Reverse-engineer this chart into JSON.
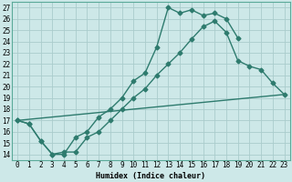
{
  "xlabel": "Humidex (Indice chaleur)",
  "ylabel": "",
  "xlim": [
    -0.5,
    23.5
  ],
  "ylim": [
    13.5,
    27.5
  ],
  "xticks": [
    0,
    1,
    2,
    3,
    4,
    5,
    6,
    7,
    8,
    9,
    10,
    11,
    12,
    13,
    14,
    15,
    16,
    17,
    18,
    19,
    20,
    21,
    22,
    23
  ],
  "yticks": [
    14,
    15,
    16,
    17,
    18,
    19,
    20,
    21,
    22,
    23,
    24,
    25,
    26,
    27
  ],
  "bg_color": "#cde8e8",
  "grid_color": "#aacccc",
  "line_color": "#2e7b6e",
  "line1_x": [
    0,
    1,
    2,
    3,
    4,
    5,
    6,
    7,
    8,
    9,
    10,
    11,
    12,
    13,
    14,
    15,
    16,
    17,
    18,
    19
  ],
  "line1_y": [
    17.0,
    16.7,
    15.2,
    14.0,
    14.0,
    15.5,
    16.0,
    17.3,
    18.0,
    19.0,
    20.5,
    21.2,
    23.5,
    27.0,
    26.5,
    26.8,
    26.3,
    26.5,
    26.0,
    24.3
  ],
  "line2_x": [
    0,
    1,
    2,
    3,
    4,
    5,
    6,
    7,
    8,
    9,
    10,
    11,
    12,
    13,
    14,
    15,
    16,
    17,
    18,
    19,
    20,
    21,
    22,
    23
  ],
  "line2_y": [
    17.0,
    16.7,
    15.2,
    14.0,
    14.2,
    14.2,
    15.5,
    16.0,
    17.0,
    18.0,
    19.0,
    19.8,
    21.0,
    22.0,
    23.0,
    24.2,
    25.3,
    25.8,
    24.8,
    22.3,
    21.8,
    21.5,
    20.3,
    19.3
  ],
  "line3_x": [
    0,
    23
  ],
  "line3_y": [
    17.0,
    19.3
  ],
  "marker": "D",
  "markersize": 2.5,
  "linewidth": 1.0,
  "tick_fontsize": 5.5,
  "xlabel_fontsize": 6.0
}
